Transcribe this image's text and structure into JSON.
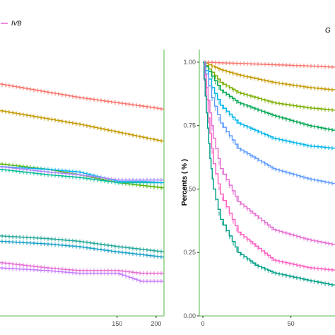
{
  "legend": {
    "label": "IVB",
    "color": "#e66fd3"
  },
  "panel_title_fragment": "G",
  "chart_data": [
    {
      "type": "line",
      "subtype": "kaplan-meier",
      "panel": "left",
      "xlim": [
        0,
        210
      ],
      "ylim": [
        0,
        1.0
      ],
      "x_ticks": [
        150,
        200
      ],
      "x_tick_labels": [
        "150",
        "200"
      ],
      "series": [
        {
          "color": "#f8766d",
          "x": [
            0,
            60,
            100,
            150,
            200,
            210
          ],
          "y": [
            0.87,
            0.84,
            0.82,
            0.8,
            0.78,
            0.775
          ]
        },
        {
          "color": "#c49a00",
          "x": [
            0,
            60,
            100,
            150,
            200,
            210
          ],
          "y": [
            0.77,
            0.74,
            0.72,
            0.69,
            0.66,
            0.655
          ]
        },
        {
          "color": "#53b400",
          "x": [
            0,
            60,
            100,
            150,
            180,
            210
          ],
          "y": [
            0.57,
            0.55,
            0.53,
            0.5,
            0.49,
            0.48
          ]
        },
        {
          "color": "#00c094",
          "x": [
            0,
            60,
            100,
            150,
            180,
            210
          ],
          "y": [
            0.55,
            0.53,
            0.52,
            0.5,
            0.5,
            0.5
          ]
        },
        {
          "color": "#00b6eb",
          "x": [
            0,
            60,
            100,
            150,
            180,
            210
          ],
          "y": [
            0.56,
            0.55,
            0.54,
            0.505,
            0.505,
            0.5
          ]
        },
        {
          "color": "#a58aff",
          "x": [
            0,
            60,
            100,
            150,
            180,
            210
          ],
          "y": [
            0.56,
            0.54,
            0.53,
            0.51,
            0.51,
            0.51
          ]
        },
        {
          "color": "#24a89a",
          "x": [
            0,
            60,
            100,
            150,
            180,
            210
          ],
          "y": [
            0.3,
            0.29,
            0.28,
            0.26,
            0.25,
            0.24
          ]
        },
        {
          "color": "#1aa0c8",
          "x": [
            0,
            60,
            100,
            150,
            180,
            210
          ],
          "y": [
            0.28,
            0.27,
            0.26,
            0.24,
            0.23,
            0.22
          ]
        },
        {
          "color": "#e66fd3",
          "x": [
            0,
            60,
            100,
            150,
            180,
            210
          ],
          "y": [
            0.2,
            0.18,
            0.17,
            0.17,
            0.16,
            0.16
          ]
        },
        {
          "color": "#c77dff",
          "x": [
            0,
            60,
            100,
            150,
            180,
            210
          ],
          "y": [
            0.18,
            0.17,
            0.16,
            0.16,
            0.13,
            0.13
          ]
        }
      ]
    },
    {
      "type": "line",
      "subtype": "kaplan-meier",
      "panel": "right",
      "xlim": [
        -2,
        75
      ],
      "ylim": [
        0,
        1.05
      ],
      "ylabel": "Percents ( % )",
      "x_ticks": [
        0,
        50
      ],
      "x_tick_labels": [
        "0",
        "50"
      ],
      "y_ticks": [
        0,
        0.25,
        0.5,
        0.75,
        1.0
      ],
      "y_tick_labels": [
        "0.00",
        "0.25",
        "0.50",
        "0.75",
        "1.00"
      ],
      "series": [
        {
          "color": "#f8766d",
          "x": [
            0,
            20,
            40,
            60,
            75
          ],
          "y": [
            1.0,
            0.995,
            0.99,
            0.985,
            0.98
          ]
        },
        {
          "color": "#c49a00",
          "x": [
            0,
            10,
            20,
            40,
            60,
            75
          ],
          "y": [
            1.0,
            0.97,
            0.95,
            0.92,
            0.9,
            0.89
          ]
        },
        {
          "color": "#7cae00",
          "x": [
            0,
            10,
            20,
            40,
            60,
            75
          ],
          "y": [
            1.0,
            0.92,
            0.88,
            0.84,
            0.82,
            0.81
          ]
        },
        {
          "color": "#00a651",
          "x": [
            0,
            10,
            20,
            40,
            60,
            75
          ],
          "y": [
            1.0,
            0.89,
            0.84,
            0.79,
            0.75,
            0.73
          ]
        },
        {
          "color": "#00b6eb",
          "x": [
            0,
            5,
            10,
            20,
            40,
            60,
            75
          ],
          "y": [
            1.0,
            0.9,
            0.83,
            0.76,
            0.7,
            0.67,
            0.66
          ]
        },
        {
          "color": "#619cff",
          "x": [
            0,
            5,
            10,
            20,
            40,
            60,
            75
          ],
          "y": [
            1.0,
            0.86,
            0.76,
            0.66,
            0.58,
            0.54,
            0.52
          ]
        },
        {
          "color": "#e66fd3",
          "x": [
            0,
            3,
            6,
            10,
            20,
            40,
            60,
            75
          ],
          "y": [
            1.0,
            0.85,
            0.7,
            0.58,
            0.45,
            0.34,
            0.3,
            0.28
          ]
        },
        {
          "color": "#ff61c3",
          "x": [
            0,
            3,
            6,
            10,
            20,
            40,
            60,
            75
          ],
          "y": [
            1.0,
            0.78,
            0.6,
            0.48,
            0.33,
            0.22,
            0.19,
            0.18
          ]
        },
        {
          "color": "#00a087",
          "x": [
            0,
            2,
            4,
            6,
            10,
            20,
            30,
            40,
            60,
            75
          ],
          "y": [
            1.0,
            0.8,
            0.62,
            0.5,
            0.38,
            0.25,
            0.2,
            0.17,
            0.14,
            0.12
          ]
        }
      ]
    }
  ]
}
